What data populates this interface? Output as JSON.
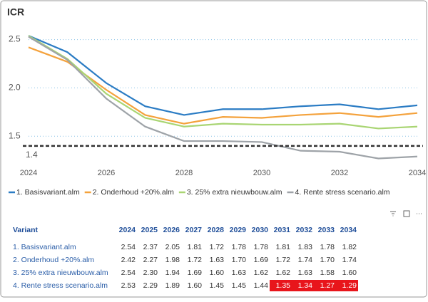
{
  "chart_data": {
    "type": "line",
    "title": "ICR",
    "x": [
      2024,
      2025,
      2026,
      2027,
      2028,
      2029,
      2030,
      2031,
      2032,
      2033,
      2034
    ],
    "xlim": [
      2024,
      2034
    ],
    "xticks": [
      2024,
      2026,
      2028,
      2030,
      2032,
      2034
    ],
    "ylim": [
      1.2,
      2.6
    ],
    "yticks": [
      {
        "value": 1.5,
        "label": "1.5"
      },
      {
        "value": 2,
        "label": "2.0"
      },
      {
        "value": 2.5,
        "label": "2.5"
      }
    ],
    "grid": true,
    "reference_line": 1.4,
    "legend": "bottom",
    "series": [
      {
        "name": "1. Basisvariant.alm",
        "color": "#2b7cc4",
        "values": [
          2.54,
          2.37,
          2.05,
          1.81,
          1.72,
          1.78,
          1.78,
          1.81,
          1.83,
          1.78,
          1.82
        ]
      },
      {
        "name": "2. Onderhoud +20%.alm",
        "color": "#f4a23c",
        "values": [
          2.42,
          2.27,
          1.98,
          1.72,
          1.63,
          1.7,
          1.69,
          1.72,
          1.74,
          1.7,
          1.74
        ]
      },
      {
        "name": "3. 25% extra nieuwbouw.alm",
        "color": "#a9d573",
        "values": [
          2.54,
          2.3,
          1.94,
          1.69,
          1.6,
          1.63,
          1.62,
          1.62,
          1.63,
          1.58,
          1.6
        ]
      },
      {
        "name": "4. Rente stress scenario.alm",
        "color": "#9ea3a8",
        "values": [
          2.53,
          2.29,
          1.89,
          1.6,
          1.45,
          1.45,
          1.44,
          1.35,
          1.34,
          1.27,
          1.29
        ]
      }
    ]
  },
  "table": {
    "columns": [
      "Variant",
      "2024",
      "2025",
      "2026",
      "2027",
      "2028",
      "2029",
      "2030",
      "2031",
      "2032",
      "2033",
      "2034"
    ],
    "highlight_color": "#e8151b",
    "rows": [
      [
        "1. Basisvariant.alm",
        "2.54",
        "2.37",
        "2.05",
        "1.81",
        "1.72",
        "1.78",
        "1.78",
        "1.81",
        "1.83",
        "1.78",
        "1.82"
      ],
      [
        "2. Onderhoud +20%.alm",
        "2.42",
        "2.27",
        "1.98",
        "1.72",
        "1.63",
        "1.70",
        "1.69",
        "1.72",
        "1.74",
        "1.70",
        "1.74"
      ],
      [
        "3. 25% extra nieuwbouw.alm",
        "2.54",
        "2.30",
        "1.94",
        "1.69",
        "1.60",
        "1.63",
        "1.62",
        "1.62",
        "1.63",
        "1.58",
        "1.60"
      ],
      [
        "4. Rente stress scenario.alm",
        "2.53",
        "2.29",
        "1.89",
        "1.60",
        "1.45",
        "1.45",
        "1.44",
        "1.35",
        "1.34",
        "1.27",
        "1.29"
      ]
    ]
  }
}
